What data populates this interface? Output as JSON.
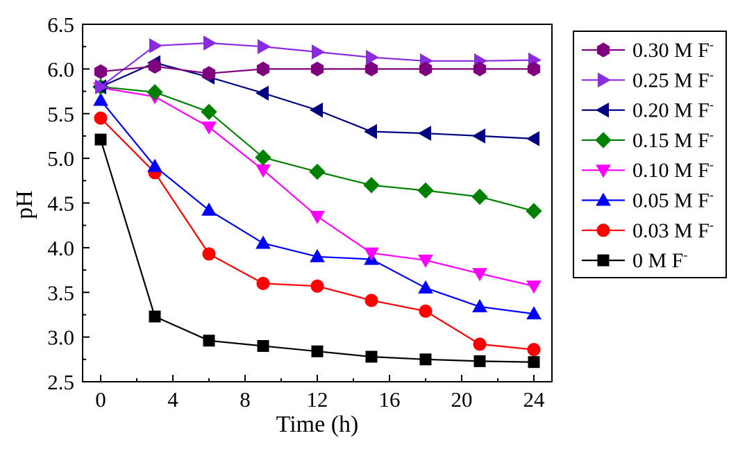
{
  "chart_data": {
    "type": "line",
    "title": "",
    "xlabel": "Time (h)",
    "ylabel": "pH",
    "xlim": [
      -1,
      25
    ],
    "ylim": [
      2.5,
      6.5
    ],
    "x_ticks": [
      0,
      4,
      8,
      12,
      16,
      20,
      24
    ],
    "y_ticks": [
      2.5,
      3.0,
      3.5,
      4.0,
      4.5,
      5.0,
      5.5,
      6.0,
      6.5
    ],
    "grid": false,
    "legend_position": "right",
    "x": [
      0,
      3,
      6,
      9,
      12,
      15,
      18,
      21,
      24
    ],
    "series": [
      {
        "name": "0.30 M F",
        "sup": "-",
        "color": "#7f007f",
        "marker": "hexagon",
        "values": [
          5.97,
          6.03,
          5.95,
          6.0,
          6.0,
          6.0,
          6.0,
          6.0,
          6.0
        ]
      },
      {
        "name": "0.25 M F",
        "sup": "-",
        "color": "#8a2be2",
        "marker": "triangle-right",
        "values": [
          5.8,
          6.26,
          6.29,
          6.25,
          6.19,
          6.13,
          6.09,
          6.09,
          6.1
        ]
      },
      {
        "name": "0.20 M F",
        "sup": "-",
        "color": "#00007f",
        "marker": "triangle-left",
        "values": [
          5.8,
          6.07,
          5.91,
          5.73,
          5.54,
          5.3,
          5.28,
          5.25,
          5.22
        ]
      },
      {
        "name": "0.15 M F",
        "sup": "-",
        "color": "#008000",
        "marker": "diamond",
        "values": [
          5.8,
          5.74,
          5.52,
          5.01,
          4.85,
          4.7,
          4.64,
          4.57,
          4.41
        ]
      },
      {
        "name": "0.10 M F",
        "sup": "-",
        "color": "#ff00ff",
        "marker": "triangle-down",
        "values": [
          5.79,
          5.69,
          5.35,
          4.87,
          4.35,
          3.94,
          3.86,
          3.71,
          3.57
        ]
      },
      {
        "name": "0.05 M F",
        "sup": "-",
        "color": "#0000ff",
        "marker": "triangle-up",
        "values": [
          5.65,
          4.91,
          4.42,
          4.05,
          3.9,
          3.87,
          3.55,
          3.34,
          3.26
        ]
      },
      {
        "name": "0.03 M F",
        "sup": "-",
        "color": "#ff0000",
        "marker": "circle",
        "values": [
          5.45,
          4.84,
          3.93,
          3.6,
          3.57,
          3.41,
          3.29,
          2.92,
          2.86
        ]
      },
      {
        "name": "0 M F",
        "sup": "-",
        "color": "#000000",
        "marker": "square",
        "values": [
          5.21,
          3.23,
          2.96,
          2.9,
          2.84,
          2.78,
          2.75,
          2.73,
          2.72
        ]
      }
    ]
  }
}
